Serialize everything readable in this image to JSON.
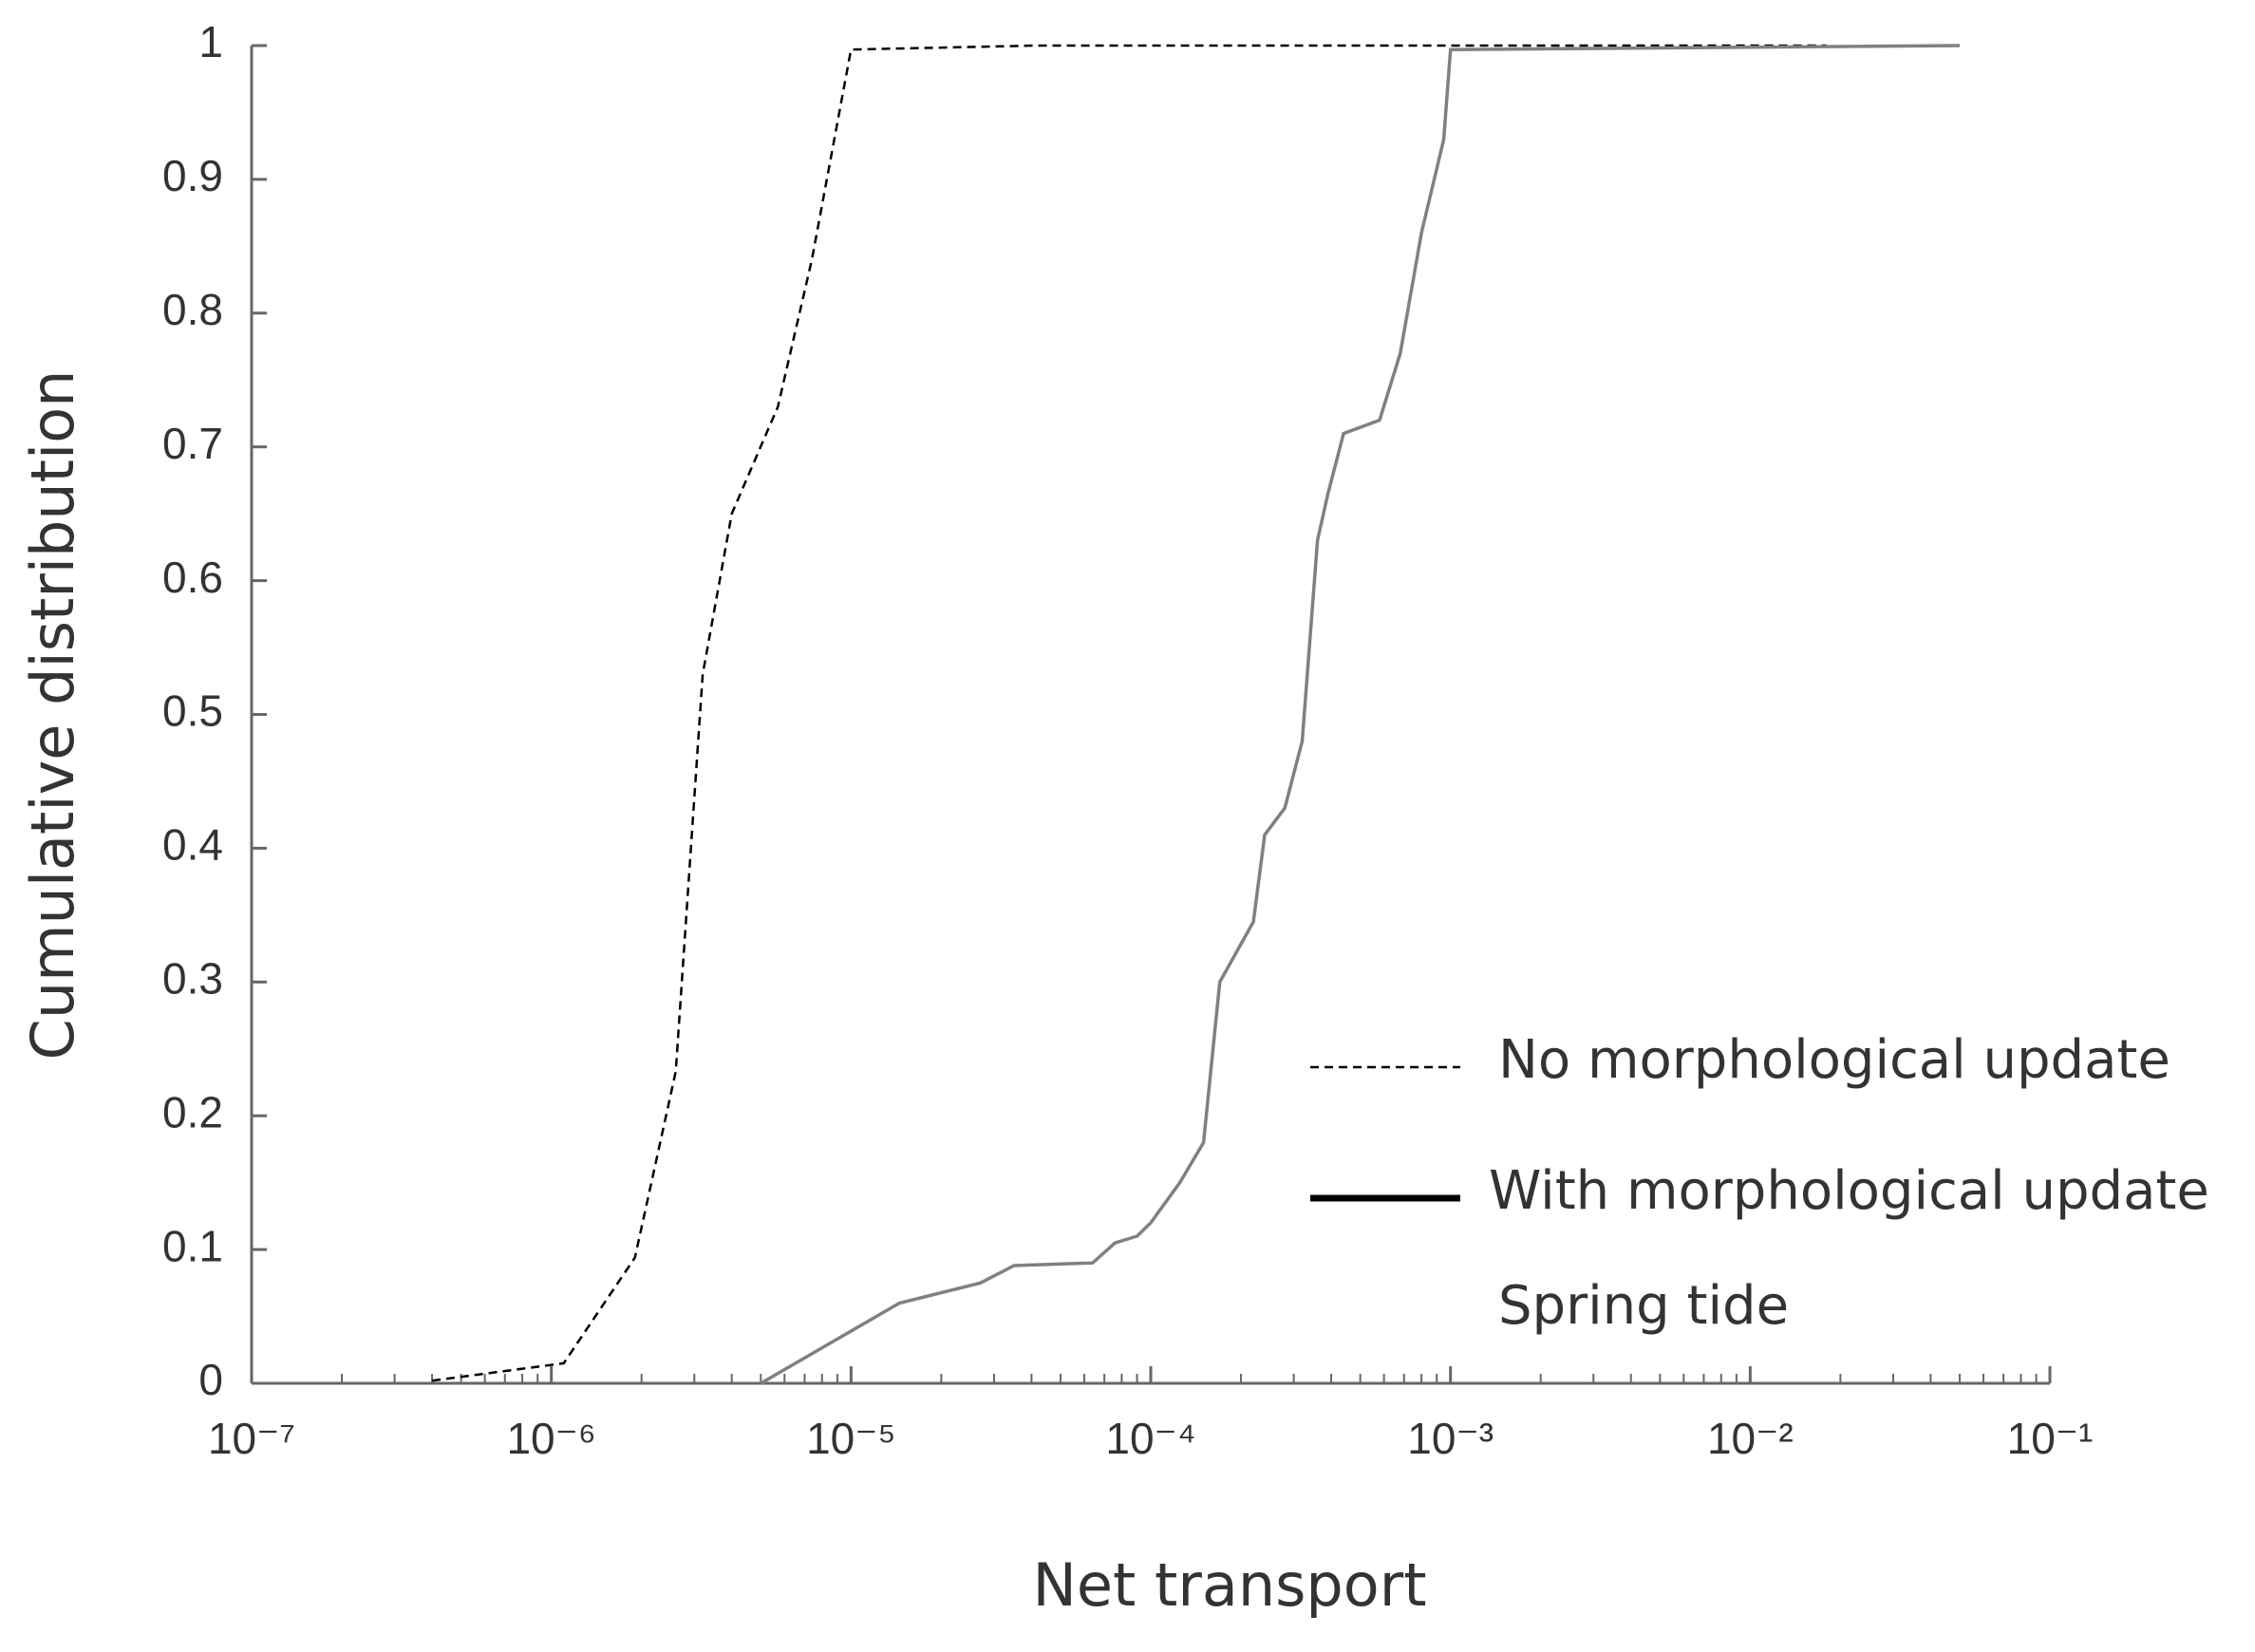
{
  "chart_data": {
    "type": "line",
    "xlabel": "Net transport",
    "ylabel": "Cumulative distribution",
    "xscale": "log",
    "xlim": [
      1e-07,
      0.1
    ],
    "xticks": [
      {
        "value": 1e-07,
        "label": "10⁻⁷"
      },
      {
        "value": 1e-06,
        "label": "10⁻⁶"
      },
      {
        "value": 1e-05,
        "label": "10⁻⁵"
      },
      {
        "value": 0.0001,
        "label": "10⁻⁴"
      },
      {
        "value": 0.001,
        "label": "10⁻³"
      },
      {
        "value": 0.01,
        "label": "10⁻²"
      },
      {
        "value": 0.1,
        "label": "10⁻¹"
      }
    ],
    "minor_ticks": true,
    "ylim": [
      0,
      1
    ],
    "yticks": [
      0,
      0.1,
      0.2,
      0.3,
      0.4,
      0.5,
      0.6,
      0.7,
      0.8,
      0.9,
      1
    ],
    "grid": false,
    "legend_position": "lower right",
    "annotations": [
      "Spring tide"
    ],
    "series": [
      {
        "name": "No morphological update",
        "color": "#000000",
        "legend_color": "#000000",
        "dash": true,
        "x": [
          4e-07,
          1.1e-06,
          1.9e-06,
          2.6e-06,
          3.2e-06,
          4e-06,
          5.7e-06,
          7.4e-06,
          1e-05,
          4.1e-05,
          0.018
        ],
        "values": [
          0.002,
          0.015,
          0.094,
          0.233,
          0.53,
          0.65,
          0.73,
          0.84,
          0.997,
          1.0,
          1.0
        ]
      },
      {
        "name": "With morphological update",
        "color": "#808080",
        "legend_color": "#000000",
        "dash": false,
        "x": [
          5e-06,
          1.45e-05,
          2.7e-05,
          3.5e-05,
          6.4e-05,
          7.6e-05,
          9e-05,
          0.0001,
          0.000125,
          0.00015,
          0.00017,
          0.00022,
          0.00024,
          0.00028,
          0.00032,
          0.00036,
          0.00039,
          0.00044,
          0.00058,
          0.00068,
          0.0008,
          0.00095,
          0.001,
          0.05
        ],
        "values": [
          0,
          0.06,
          0.075,
          0.088,
          0.09,
          0.105,
          0.11,
          0.12,
          0.15,
          0.18,
          0.3,
          0.345,
          0.41,
          0.43,
          0.48,
          0.63,
          0.665,
          0.71,
          0.72,
          0.77,
          0.86,
          0.93,
          0.997,
          1.0
        ]
      }
    ]
  }
}
